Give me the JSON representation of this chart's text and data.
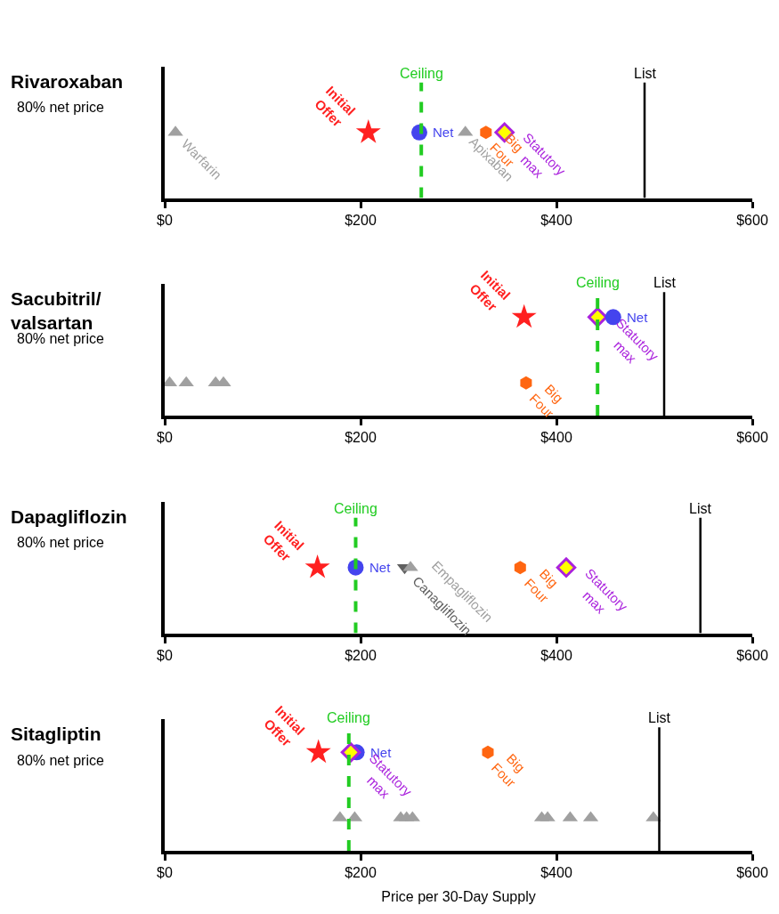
{
  "chart_data": [
    {
      "type": "scatter",
      "orientation": "horizontal",
      "title": "Rivaroxaban",
      "subtitle": "80% net price",
      "categories": [
        null
      ],
      "xlim": [
        0,
        600
      ],
      "xticks": [
        {
          "value": 0,
          "label": "$0"
        },
        {
          "value": 200,
          "label": "$200"
        },
        {
          "value": 400,
          "label": "$400"
        },
        {
          "value": 600,
          "label": "$600"
        }
      ],
      "ref_lines": [
        {
          "axis": "x",
          "value": 262,
          "label": "Ceiling",
          "color": "#22cc22",
          "line_style": "dashed"
        },
        {
          "axis": "x",
          "value": 490,
          "label": "List",
          "color": "#000000",
          "line_style": "solid"
        }
      ],
      "series": [
        {
          "name": "Warfarin",
          "color": "#a0a0a0",
          "marker": "triangle",
          "values": [
            11
          ]
        },
        {
          "name": "Initial Offer",
          "color": "#ff2020",
          "marker": "star",
          "values": [
            208
          ]
        },
        {
          "name": "Net",
          "color": "#4444ee",
          "marker": "circle",
          "values": [
            260
          ]
        },
        {
          "name": "Apixaban",
          "color": "#a0a0a0",
          "marker": "triangle",
          "values": [
            307
          ]
        },
        {
          "name": "Big Four",
          "color": "#ff6611",
          "values": [
            328
          ]
        },
        {
          "name": "Statutory max",
          "color": "#aa22dd",
          "marker": "diamond",
          "values": [
            347
          ]
        }
      ]
    },
    {
      "type": "scatter",
      "orientation": "horizontal",
      "title": "Sacubitril/ valsartan",
      "subtitle": "80% net price",
      "categories": [
        null,
        null
      ],
      "xlim": [
        0,
        600
      ],
      "xticks": [
        {
          "value": 0,
          "label": "$0"
        },
        {
          "value": 200,
          "label": "$200"
        },
        {
          "value": 400,
          "label": "$400"
        },
        {
          "value": 600,
          "label": "$600"
        }
      ],
      "ref_lines": [
        {
          "axis": "x",
          "value": 442,
          "label": "Ceiling",
          "color": "#22cc22",
          "line_style": "dashed"
        },
        {
          "axis": "x",
          "value": 510,
          "label": "List",
          "color": "#000000",
          "line_style": "solid"
        }
      ],
      "series": [
        {
          "color": "#a0a0a0",
          "marker": "triangle",
          "values": [
            null,
            5
          ]
        },
        {
          "color": "#a0a0a0",
          "marker": "triangle",
          "values": [
            null,
            22
          ]
        },
        {
          "color": "#a0a0a0",
          "marker": "triangle",
          "values": [
            null,
            52
          ]
        },
        {
          "color": "#a0a0a0",
          "marker": "triangle",
          "values": [
            null,
            60
          ]
        },
        {
          "name": "Initial Offer",
          "color": "#ff2020",
          "marker": "star",
          "values": [
            367,
            null
          ]
        },
        {
          "name": "Big Four",
          "color": "#ff6611",
          "values": [
            null,
            369
          ]
        },
        {
          "name": "Statutory max",
          "color": "#aa22dd",
          "marker": "diamond",
          "values": [
            442,
            null
          ]
        },
        {
          "name": "Net",
          "color": "#4444ee",
          "marker": "circle",
          "values": [
            458,
            null
          ]
        }
      ]
    },
    {
      "type": "scatter",
      "orientation": "horizontal",
      "title": "Dapagliflozin",
      "subtitle": "80% net price",
      "categories": [
        null
      ],
      "xlim": [
        0,
        600
      ],
      "xticks": [
        {
          "value": 0,
          "label": "$0"
        },
        {
          "value": 200,
          "label": "$200"
        },
        {
          "value": 400,
          "label": "$400"
        },
        {
          "value": 600,
          "label": "$600"
        }
      ],
      "ref_lines": [
        {
          "axis": "x",
          "value": 195,
          "label": "Ceiling",
          "color": "#22cc22",
          "line_style": "dashed"
        },
        {
          "axis": "x",
          "value": 547,
          "label": "List",
          "color": "#000000",
          "line_style": "solid"
        }
      ],
      "series": [
        {
          "name": "Initial Offer",
          "color": "#ff2020",
          "marker": "star",
          "values": [
            156
          ]
        },
        {
          "name": "Net",
          "color": "#4444ee",
          "marker": "circle",
          "values": [
            195
          ]
        },
        {
          "name": "Canagliflozin",
          "color": "#606060",
          "marker": "triangle-down",
          "values": [
            245
          ]
        },
        {
          "name": "Empagliflozin",
          "color": "#a0a0a0",
          "marker": "triangle",
          "values": [
            251
          ]
        },
        {
          "name": "Big Four",
          "color": "#ff6611",
          "values": [
            363
          ]
        },
        {
          "name": "Statutory max",
          "color": "#aa22dd",
          "marker": "diamond",
          "values": [
            410
          ]
        }
      ]
    },
    {
      "type": "scatter",
      "orientation": "horizontal",
      "title": "Sitagliptin",
      "subtitle": "80% net price",
      "xlabel": "Price per 30-Day Supply",
      "categories": [
        null,
        null
      ],
      "xlim": [
        0,
        600
      ],
      "xticks": [
        {
          "value": 0,
          "label": "$0"
        },
        {
          "value": 200,
          "label": "$200"
        },
        {
          "value": 400,
          "label": "$400"
        },
        {
          "value": 600,
          "label": "$600"
        }
      ],
      "ref_lines": [
        {
          "axis": "x",
          "value": 188,
          "label": "Ceiling",
          "color": "#22cc22",
          "line_style": "dashed"
        },
        {
          "axis": "x",
          "value": 505,
          "label": "List",
          "color": "#000000",
          "line_style": "solid"
        }
      ],
      "series": [
        {
          "color": "#a0a0a0",
          "marker": "triangle",
          "values": [
            null,
            179
          ]
        },
        {
          "color": "#a0a0a0",
          "marker": "triangle",
          "values": [
            null,
            194
          ]
        },
        {
          "color": "#a0a0a0",
          "marker": "triangle",
          "values": [
            null,
            241
          ]
        },
        {
          "color": "#a0a0a0",
          "marker": "triangle",
          "values": [
            null,
            247
          ]
        },
        {
          "color": "#a0a0a0",
          "marker": "triangle",
          "values": [
            null,
            253
          ]
        },
        {
          "color": "#a0a0a0",
          "marker": "triangle",
          "values": [
            null,
            385
          ]
        },
        {
          "color": "#a0a0a0",
          "marker": "triangle",
          "values": [
            null,
            391
          ]
        },
        {
          "color": "#a0a0a0",
          "marker": "triangle",
          "values": [
            null,
            414
          ]
        },
        {
          "color": "#a0a0a0",
          "marker": "triangle",
          "values": [
            null,
            435
          ]
        },
        {
          "color": "#a0a0a0",
          "marker": "triangle",
          "values": [
            null,
            499
          ]
        },
        {
          "name": "Initial Offer",
          "color": "#ff2020",
          "marker": "star",
          "values": [
            157,
            null
          ]
        },
        {
          "name": "Net",
          "color": "#4444ee",
          "marker": "circle",
          "values": [
            196,
            null
          ]
        },
        {
          "name": "Statutory max",
          "color": "#aa22dd",
          "marker": "diamond",
          "values": [
            190,
            null
          ]
        },
        {
          "name": "Big Four",
          "color": "#ff6611",
          "values": [
            330,
            null
          ]
        }
      ]
    }
  ]
}
